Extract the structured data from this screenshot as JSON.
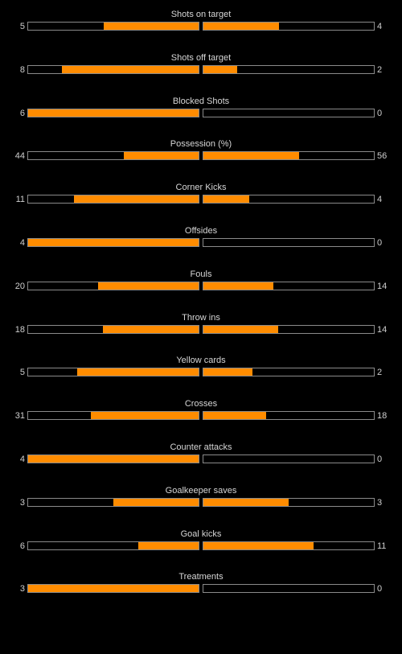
{
  "colors": {
    "background": "#000000",
    "bar_fill": "#ff8c00",
    "bar_border": "#8a8a8a",
    "text": "#cfcfcf"
  },
  "stats": [
    {
      "label": "Shots on target",
      "home": "5",
      "away": "4",
      "home_fraction": 0.556,
      "away_fraction": 0.444
    },
    {
      "label": "Shots off target",
      "home": "8",
      "away": "2",
      "home_fraction": 0.8,
      "away_fraction": 0.2
    },
    {
      "label": "Blocked Shots",
      "home": "6",
      "away": "0",
      "home_fraction": 1.0,
      "away_fraction": 0.0
    },
    {
      "label": "Possession (%)",
      "home": "44",
      "away": "56",
      "home_fraction": 0.44,
      "away_fraction": 0.56
    },
    {
      "label": "Corner Kicks",
      "home": "11",
      "away": "4",
      "home_fraction": 0.733,
      "away_fraction": 0.267
    },
    {
      "label": "Offsides",
      "home": "4",
      "away": "0",
      "home_fraction": 1.0,
      "away_fraction": 0.0
    },
    {
      "label": "Fouls",
      "home": "20",
      "away": "14",
      "home_fraction": 0.588,
      "away_fraction": 0.412
    },
    {
      "label": "Throw ins",
      "home": "18",
      "away": "14",
      "home_fraction": 0.563,
      "away_fraction": 0.438
    },
    {
      "label": "Yellow cards",
      "home": "5",
      "away": "2",
      "home_fraction": 0.714,
      "away_fraction": 0.286
    },
    {
      "label": "Crosses",
      "home": "31",
      "away": "18",
      "home_fraction": 0.633,
      "away_fraction": 0.367
    },
    {
      "label": "Counter attacks",
      "home": "4",
      "away": "0",
      "home_fraction": 1.0,
      "away_fraction": 0.0
    },
    {
      "label": "Goalkeeper saves",
      "home": "3",
      "away": "3",
      "home_fraction": 0.5,
      "away_fraction": 0.5
    },
    {
      "label": "Goal kicks",
      "home": "6",
      "away": "11",
      "home_fraction": 0.353,
      "away_fraction": 0.647
    },
    {
      "label": "Treatments",
      "home": "3",
      "away": "0",
      "home_fraction": 1.0,
      "away_fraction": 0.0
    }
  ]
}
